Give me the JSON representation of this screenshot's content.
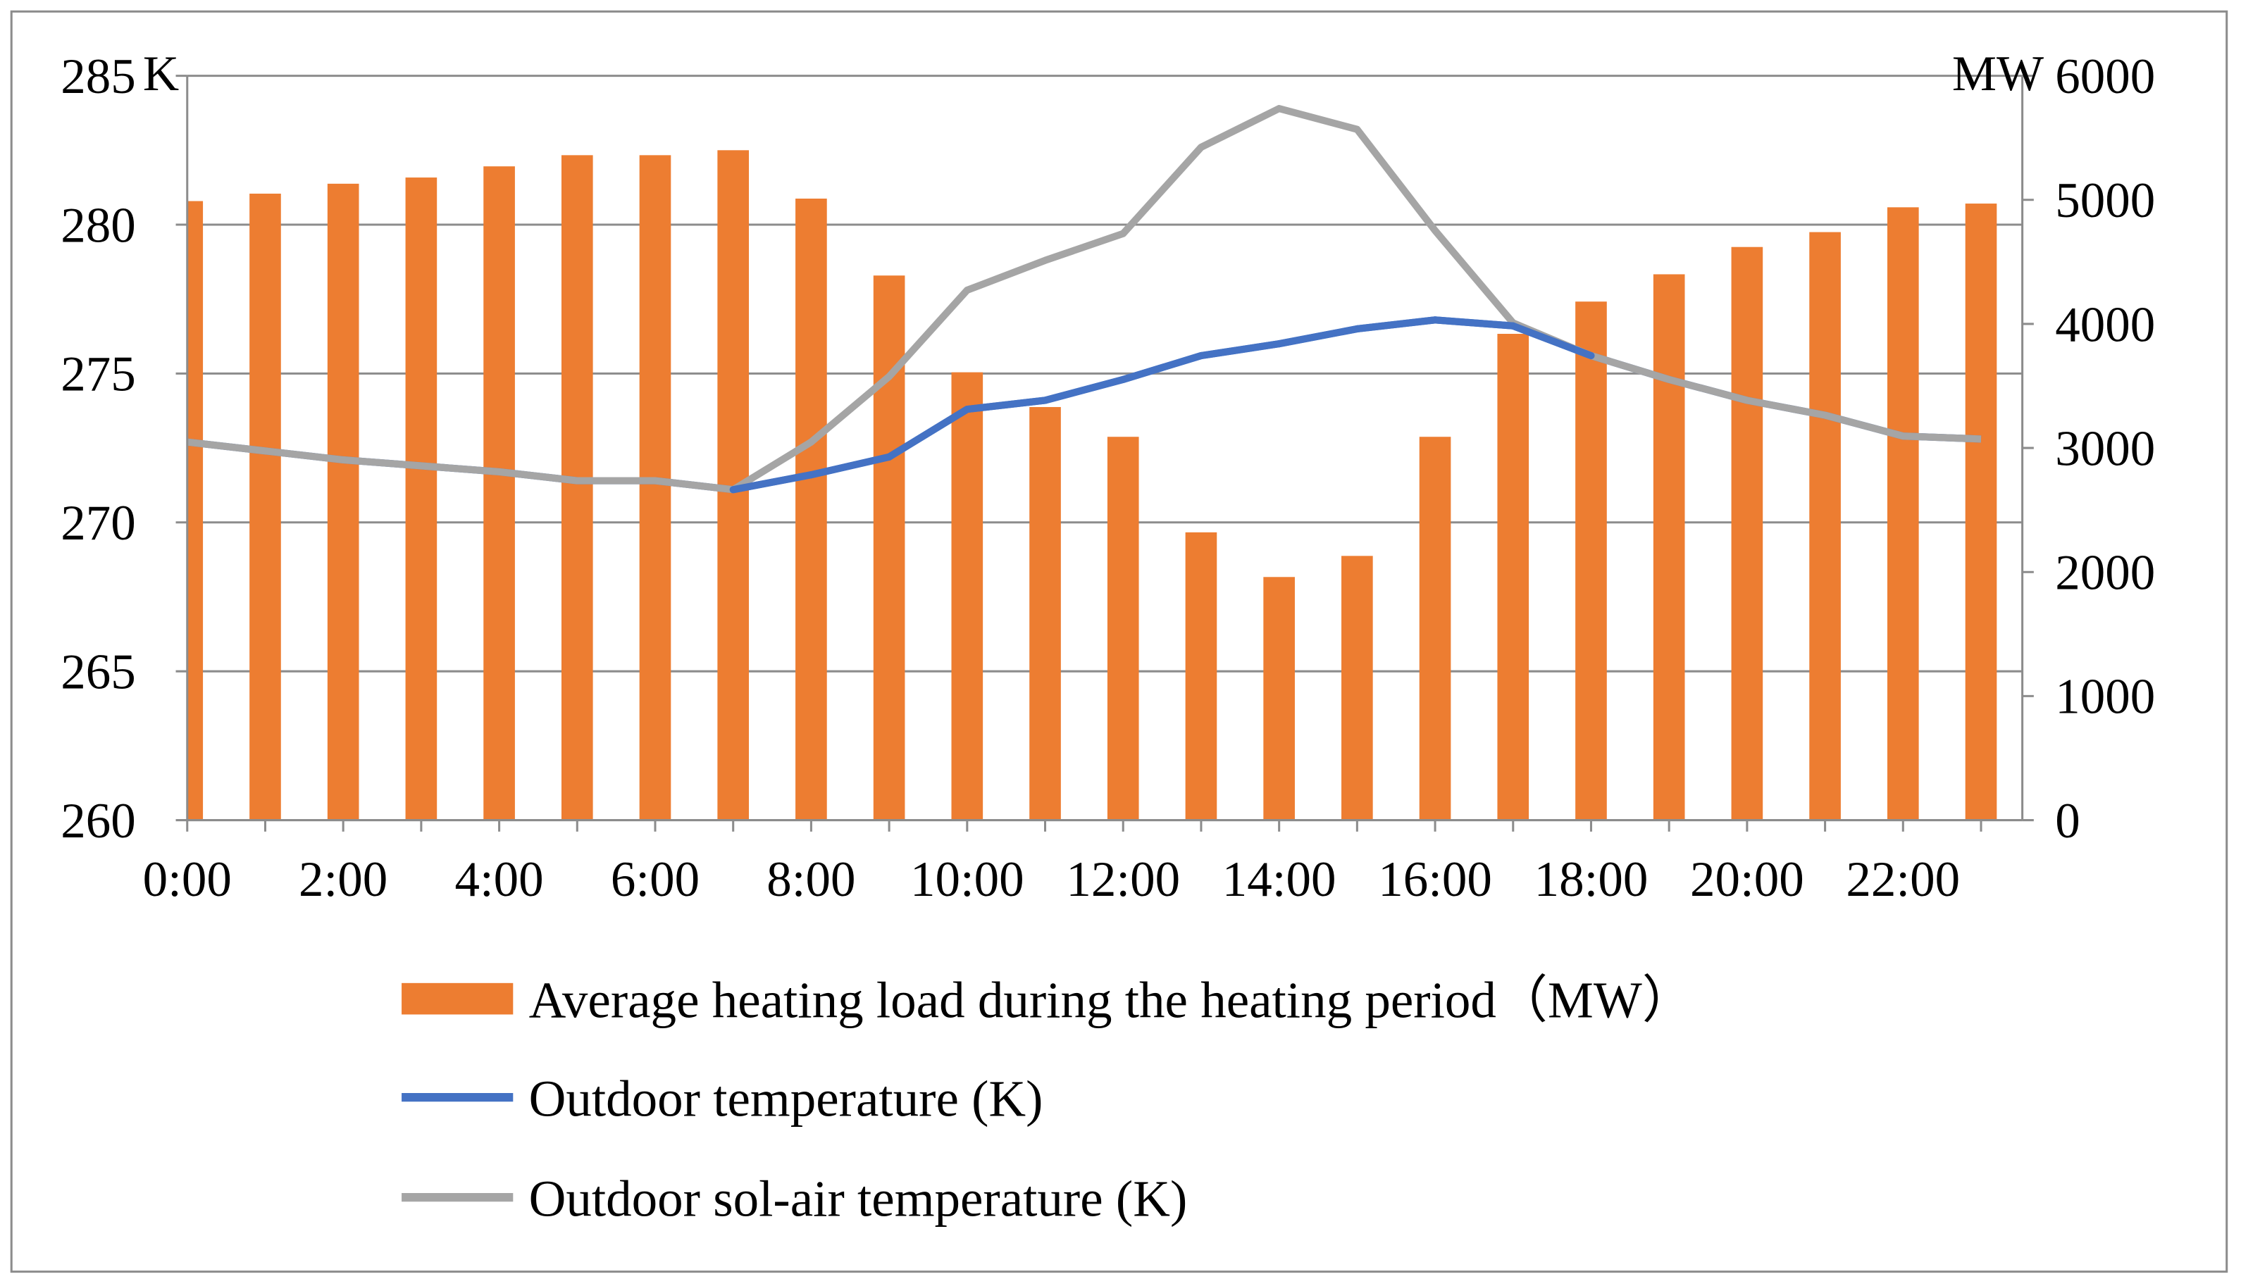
{
  "chart_data": {
    "type": "bar+line",
    "title": "",
    "left_axis": {
      "unit_label": "K",
      "ylim": [
        260,
        285
      ],
      "ticks": [
        "260",
        "265",
        "270",
        "275",
        "280",
        "285"
      ]
    },
    "right_axis": {
      "unit_label": "MW",
      "ylim": [
        0,
        6000
      ],
      "ticks": [
        "0",
        "1000",
        "2000",
        "3000",
        "4000",
        "5000",
        "6000"
      ]
    },
    "x": [
      "0:00",
      "1:00",
      "2:00",
      "3:00",
      "4:00",
      "5:00",
      "6:00",
      "7:00",
      "8:00",
      "9:00",
      "10:00",
      "11:00",
      "12:00",
      "13:00",
      "14:00",
      "15:00",
      "16:00",
      "17:00",
      "18:00",
      "19:00",
      "20:00",
      "21:00",
      "22:00",
      "23:00"
    ],
    "x_tick_labels": [
      "0:00",
      "2:00",
      "4:00",
      "6:00",
      "8:00",
      "10:00",
      "12:00",
      "14:00",
      "16:00",
      "18:00",
      "20:00",
      "22:00"
    ],
    "grid": true,
    "legend_position": "bottom",
    "series": [
      {
        "name": "Average heating load during the heating period（MW）",
        "type": "bar",
        "axis": "right",
        "color": "#ED7D31",
        "values": [
          4990,
          5050,
          5130,
          5180,
          5270,
          5360,
          5360,
          5400,
          5010,
          4390,
          3610,
          3330,
          3090,
          2320,
          1960,
          2130,
          3090,
          3920,
          4180,
          4400,
          4620,
          4740,
          4940,
          4970
        ]
      },
      {
        "name": "Outdoor temperature (K)",
        "type": "line",
        "axis": "left",
        "color": "#4472C4",
        "values": [
          272.7,
          272.4,
          272.1,
          271.9,
          271.7,
          271.4,
          271.4,
          271.1,
          271.6,
          272.2,
          273.8,
          274.1,
          274.8,
          275.6,
          276.0,
          276.5,
          276.8,
          276.6,
          275.6,
          274.8,
          274.1,
          273.6,
          272.9,
          272.8
        ]
      },
      {
        "name": "Outdoor sol-air temperature (K)",
        "type": "line",
        "axis": "left",
        "color": "#A5A5A5",
        "values": [
          272.7,
          272.4,
          272.1,
          271.9,
          271.7,
          271.4,
          271.4,
          271.1,
          272.7,
          274.9,
          277.8,
          278.8,
          279.7,
          282.6,
          283.9,
          283.2,
          279.8,
          276.7,
          275.6,
          274.8,
          274.1,
          273.6,
          272.9,
          272.8
        ]
      }
    ]
  }
}
